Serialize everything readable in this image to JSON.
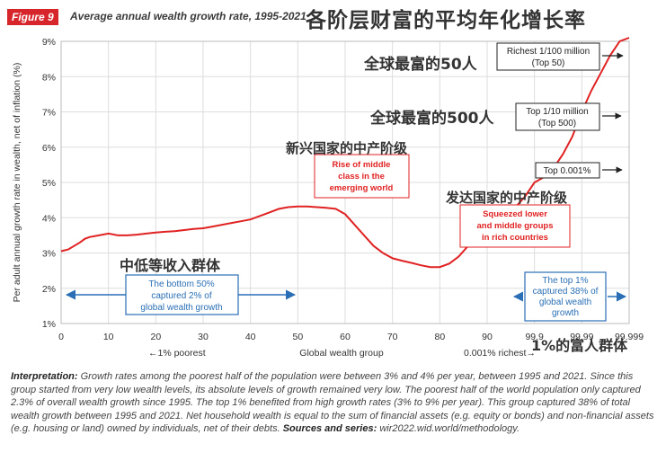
{
  "header": {
    "figure_label": "Figure 9",
    "title": "Average annual wealth growth rate, 1995-2021",
    "cn_title": "各阶层财富的平均年化增长率"
  },
  "colors": {
    "line": "#e02222",
    "blue_box": "#2a6fb5",
    "red_box": "#e02222",
    "dark": "#222222",
    "grid": "#dddddd"
  },
  "chart_data": {
    "type": "line",
    "ylabel": "Per adult annual growth rate in wealth, net of inflation (%)",
    "xlabel": "Global wealth group",
    "ylim": [
      1,
      9
    ],
    "yticks": [
      "1%",
      "2%",
      "3%",
      "4%",
      "5%",
      "6%",
      "7%",
      "8%",
      "9%"
    ],
    "xticks": [
      "0",
      "10",
      "20",
      "30",
      "40",
      "50",
      "60",
      "70",
      "80",
      "90",
      "99.9",
      "99.99",
      "99.999"
    ],
    "x_note_left": "←1% poorest",
    "x_note_right": "0.001% richest→",
    "series": [
      {
        "name": "Average annual wealth growth rate",
        "x_index": [
          0,
          0.15,
          0.4,
          0.5,
          0.6,
          0.8,
          1.0,
          1.2,
          1.4,
          1.6,
          1.8,
          2.0,
          2.2,
          2.4,
          2.6,
          2.8,
          3.0,
          3.2,
          3.4,
          3.6,
          3.8,
          4.0,
          4.2,
          4.4,
          4.6,
          4.8,
          5.0,
          5.2,
          5.4,
          5.6,
          5.8,
          6.0,
          6.2,
          6.4,
          6.6,
          6.8,
          7.0,
          7.2,
          7.4,
          7.6,
          7.8,
          8.0,
          8.2,
          8.4,
          8.6,
          8.8,
          9.0,
          9.2,
          9.4,
          9.6,
          9.8,
          10.0,
          10.2,
          10.4,
          10.6,
          10.8,
          11.0,
          11.2,
          11.4,
          11.6,
          11.8,
          12.0
        ],
        "values": [
          3.05,
          3.1,
          3.3,
          3.4,
          3.45,
          3.5,
          3.55,
          3.5,
          3.5,
          3.52,
          3.55,
          3.58,
          3.6,
          3.62,
          3.65,
          3.68,
          3.7,
          3.75,
          3.8,
          3.85,
          3.9,
          3.95,
          4.05,
          4.15,
          4.25,
          4.3,
          4.32,
          4.32,
          4.3,
          4.28,
          4.25,
          4.1,
          3.8,
          3.5,
          3.2,
          3.0,
          2.85,
          2.78,
          2.72,
          2.65,
          2.6,
          2.6,
          2.7,
          2.9,
          3.2,
          3.5,
          3.8,
          4.0,
          4.1,
          4.3,
          4.6,
          5.0,
          5.15,
          5.4,
          5.8,
          6.3,
          7.0,
          7.6,
          8.1,
          8.6,
          9.0,
          9.3
        ]
      }
    ],
    "annotations": {
      "top50": [
        "Richest 1/100 million",
        "(Top 50)"
      ],
      "top500": [
        "Top 1/10 million",
        "(Top 500)"
      ],
      "top0001": "Top 0.001%",
      "rise": [
        "Rise of middle",
        "class in the",
        "emerging world"
      ],
      "squeezed": [
        "Squeezed lower",
        "and middle groups",
        "in rich countries"
      ],
      "bottom50": [
        "The bottom 50%",
        "captured 2% of",
        "global wealth growth"
      ],
      "top1": [
        "The top 1%",
        "captured 38% of",
        "global wealth",
        "growth"
      ]
    },
    "cn_labels": {
      "top50": "全球最富的50人",
      "top500": "全球最富的500人",
      "emerging": "新兴国家的中产阶级",
      "developed": "发达国家的中产阶级",
      "lowmid": "中低等收入群体",
      "rich1": "1%的富人群体"
    }
  },
  "footer": {
    "interp_label": "Interpretation:",
    "interp_text": "Growth rates among the poorest half of the population were between 3% and 4% per year, between 1995 and 2021. Since this group started from very low wealth levels, its absolute levels of growth remained very low. The poorest half of the world population only captured 2.3% of overall wealth growth since 1995. The top 1% benefited from high growth rates (3% to 9% per year). This group captured 38% of total wealth growth between 1995 and 2021. Net household wealth is equal to the sum of financial assets (e.g. equity or bonds) and non-financial assets (e.g. housing or land) owned by individuals, net of their debts.",
    "sources_label": "Sources and series:",
    "sources_text": "wir2022.wid.world/methodology."
  }
}
